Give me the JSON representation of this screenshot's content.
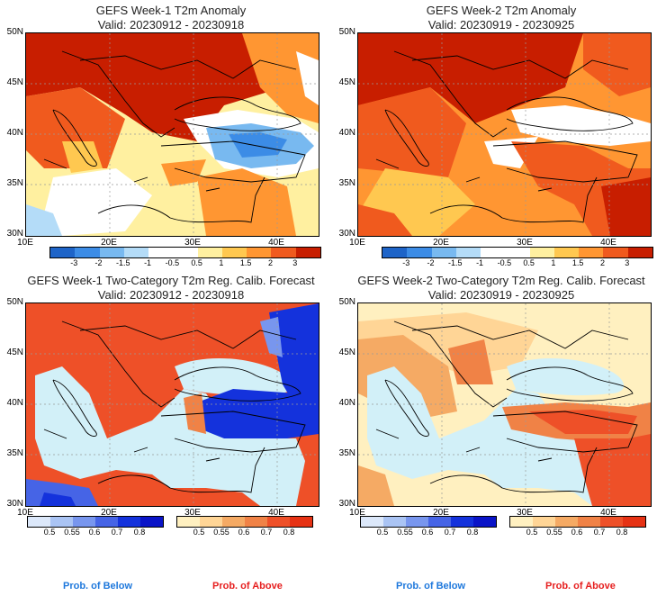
{
  "panels": [
    {
      "title1": "GEFS Week-1 T2m Anomaly",
      "title2": "Valid: 20230912 - 20230918"
    },
    {
      "title1": "GEFS Week-2 T2m Anomaly",
      "title2": "Valid: 20230919 - 20230925"
    },
    {
      "title1": "GEFS Week-1 Two-Category T2m Reg. Calib. Forecast",
      "title2": "Valid: 20230912 - 20230918"
    },
    {
      "title1": "GEFS Week-2 Two-Category T2m Reg. Calib. Forecast",
      "title2": "Valid: 20230919 - 20230925"
    }
  ],
  "lat_labels": [
    "50N",
    "45N",
    "40N",
    "35N",
    "30N"
  ],
  "lon_labels": [
    "10E",
    "20E",
    "30E",
    "40E"
  ],
  "anomaly_scale": {
    "labels": [
      "-3",
      "-2",
      "-1.5",
      "-1",
      "-0.5",
      "0.5",
      "1",
      "1.5",
      "2",
      "3"
    ],
    "colors": [
      "#1e64c8",
      "#3c8ce6",
      "#78b9f0",
      "#b4dcf8",
      "#ffffff",
      "#ffffff",
      "#fff0a0",
      "#ffc850",
      "#ff9632",
      "#f05a1e",
      "#c81e00"
    ]
  },
  "prob_below": {
    "labels": [
      "0.5",
      "0.55",
      "0.6",
      "0.7",
      "0.8"
    ],
    "colors": [
      "#dce8fa",
      "#aac4f4",
      "#7896ee",
      "#4664e6",
      "#1432dc",
      "#0a14c8"
    ]
  },
  "prob_above": {
    "labels": [
      "0.5",
      "0.55",
      "0.6",
      "0.7",
      "0.8"
    ],
    "colors": [
      "#fff0c0",
      "#ffd596",
      "#f5aa64",
      "#f08246",
      "#ee5028",
      "#e63214"
    ]
  },
  "legend": {
    "below": "Prob. of Below",
    "above": "Prob. of Above"
  },
  "colors": {
    "below_text": "#1e78dc",
    "above_text": "#e61e1e",
    "sea": "#d2f0f8"
  }
}
